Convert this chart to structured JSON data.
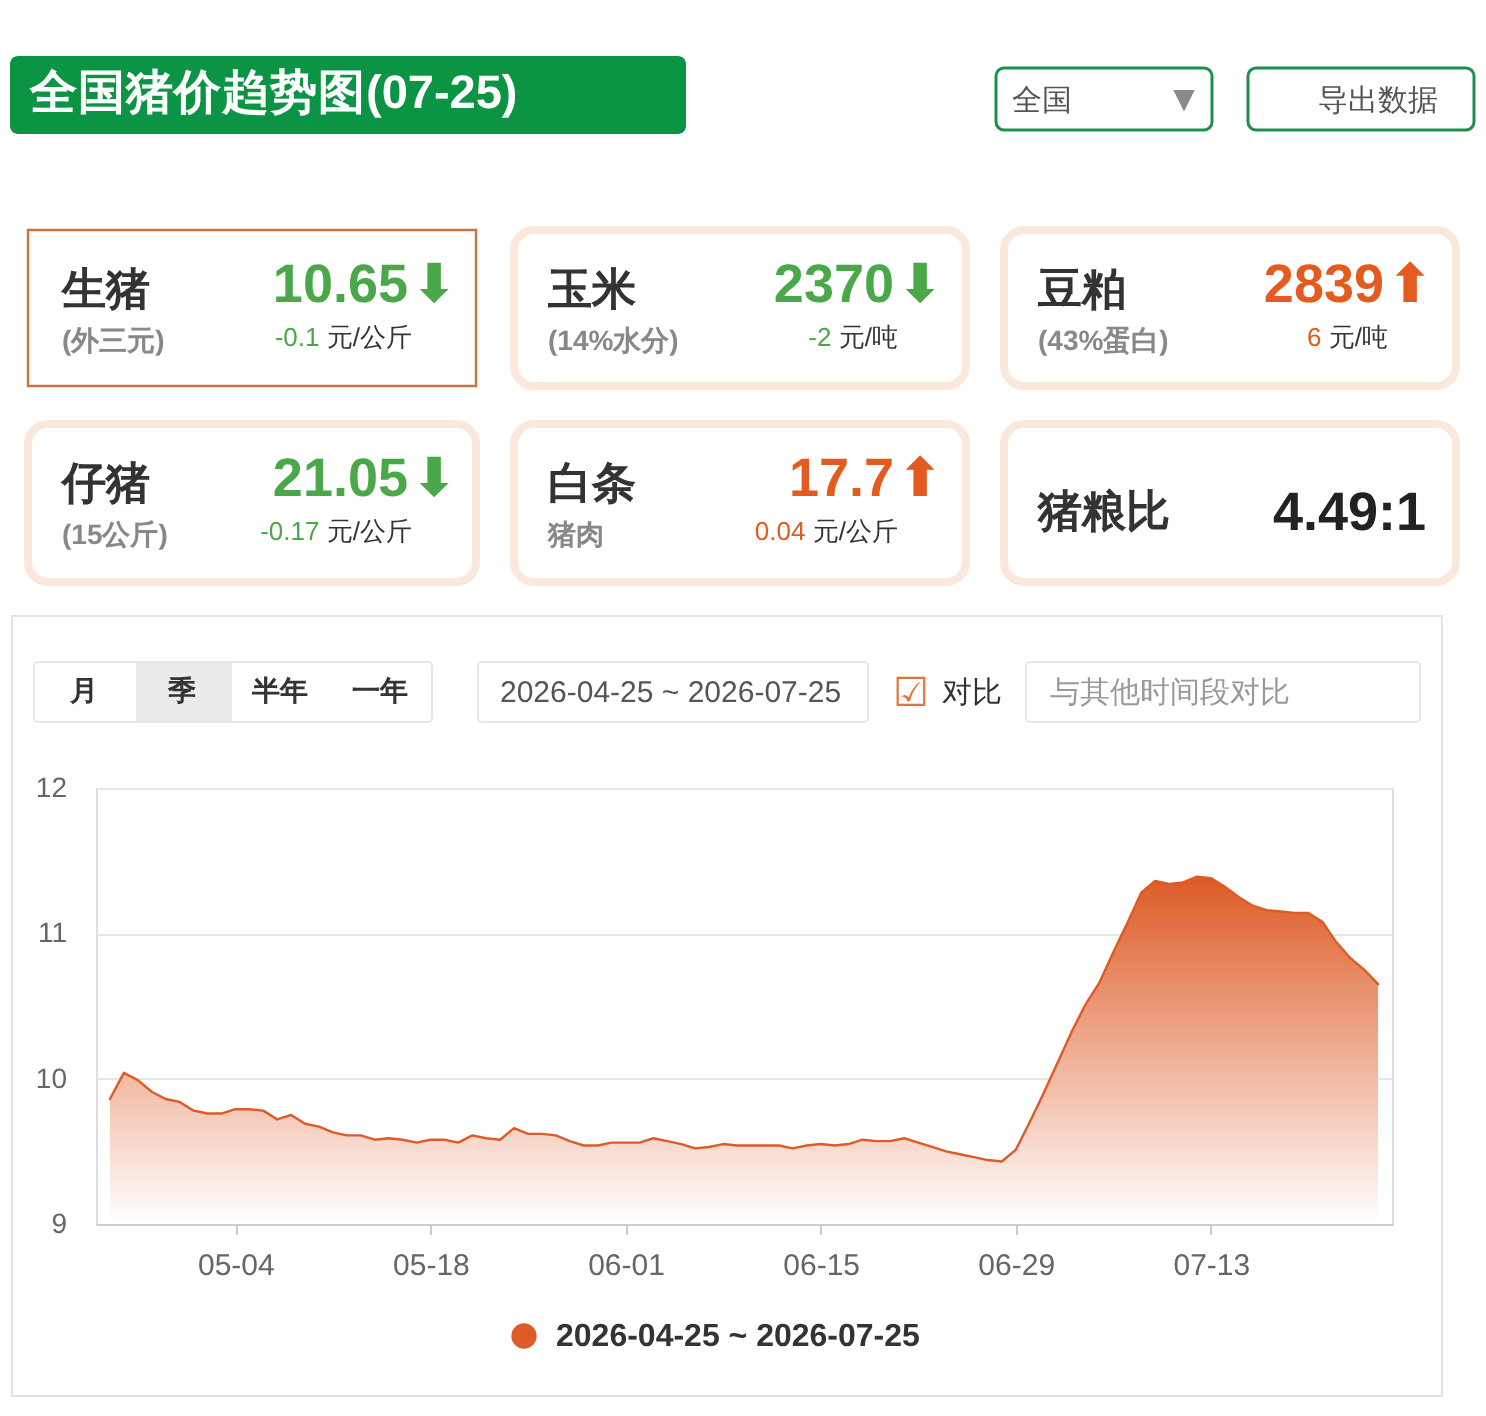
{
  "chart_data": {
    "type": "area",
    "title": "全国猪价趋势图(07-25)",
    "x": [
      "2026-04-25",
      "2026-04-26",
      "2026-04-27",
      "2026-04-28",
      "2026-04-29",
      "2026-04-30",
      "2026-05-01",
      "2026-05-02",
      "2026-05-03",
      "2026-05-04",
      "2026-05-05",
      "2026-05-06",
      "2026-05-07",
      "2026-05-08",
      "2026-05-09",
      "2026-05-10",
      "2026-05-11",
      "2026-05-12",
      "2026-05-13",
      "2026-05-14",
      "2026-05-15",
      "2026-05-16",
      "2026-05-17",
      "2026-05-18",
      "2026-05-19",
      "2026-05-20",
      "2026-05-21",
      "2026-05-22",
      "2026-05-23",
      "2026-05-24",
      "2026-05-25",
      "2026-05-26",
      "2026-05-27",
      "2026-05-28",
      "2026-05-29",
      "2026-05-30",
      "2026-05-31",
      "2026-06-01",
      "2026-06-02",
      "2026-06-03",
      "2026-06-04",
      "2026-06-05",
      "2026-06-06",
      "2026-06-07",
      "2026-06-08",
      "2026-06-09",
      "2026-06-10",
      "2026-06-11",
      "2026-06-12",
      "2026-06-13",
      "2026-06-14",
      "2026-06-15",
      "2026-06-16",
      "2026-06-17",
      "2026-06-18",
      "2026-06-19",
      "2026-06-20",
      "2026-06-21",
      "2026-06-22",
      "2026-06-23",
      "2026-06-24",
      "2026-06-25",
      "2026-06-26",
      "2026-06-27",
      "2026-06-28",
      "2026-06-29",
      "2026-06-30",
      "2026-07-01",
      "2026-07-02",
      "2026-07-03",
      "2026-07-04",
      "2026-07-05",
      "2026-07-06",
      "2026-07-07",
      "2026-07-08",
      "2026-07-09",
      "2026-07-10",
      "2026-07-11",
      "2026-07-12",
      "2026-07-13",
      "2026-07-14",
      "2026-07-15",
      "2026-07-16",
      "2026-07-17",
      "2026-07-18",
      "2026-07-19",
      "2026-07-20",
      "2026-07-21",
      "2026-07-22",
      "2026-07-23",
      "2026-07-24",
      "2026-07-25"
    ],
    "series": [
      {
        "name": "2026-04-25 ~ 2026-07-25",
        "color": "#dd5b26",
        "values": [
          9.86,
          10.04,
          9.99,
          9.91,
          9.86,
          9.84,
          9.78,
          9.76,
          9.76,
          9.79,
          9.79,
          9.78,
          9.72,
          9.75,
          9.69,
          9.67,
          9.63,
          9.61,
          9.61,
          9.58,
          9.59,
          9.58,
          9.56,
          9.58,
          9.58,
          9.56,
          9.61,
          9.59,
          9.58,
          9.66,
          9.62,
          9.62,
          9.61,
          9.57,
          9.54,
          9.54,
          9.56,
          9.56,
          9.56,
          9.59,
          9.57,
          9.55,
          9.52,
          9.53,
          9.55,
          9.54,
          9.54,
          9.54,
          9.54,
          9.52,
          9.54,
          9.55,
          9.54,
          9.55,
          9.58,
          9.57,
          9.57,
          9.59,
          9.56,
          9.53,
          9.5,
          9.48,
          9.46,
          9.44,
          9.43,
          9.51,
          9.7,
          9.9,
          10.11,
          10.32,
          10.51,
          10.66,
          10.87,
          11.07,
          11.28,
          11.36,
          11.34,
          11.35,
          11.39,
          11.38,
          11.32,
          11.25,
          11.19,
          11.16,
          11.15,
          11.14,
          11.14,
          11.08,
          10.94,
          10.83,
          10.75,
          10.65
        ]
      }
    ],
    "xlim": [
      "2026-04-24",
      "2026-07-26"
    ],
    "xticks": [
      {
        "value": "2026-05-04",
        "label": "05-04"
      },
      {
        "value": "2026-05-18",
        "label": "05-18"
      },
      {
        "value": "2026-06-01",
        "label": "06-01"
      },
      {
        "value": "2026-06-15",
        "label": "06-15"
      },
      {
        "value": "2026-06-29",
        "label": "06-29"
      },
      {
        "value": "2026-07-13",
        "label": "07-13"
      }
    ],
    "ylim": [
      9,
      12
    ],
    "yticks": [
      9,
      10,
      11,
      12
    ],
    "grid": "y",
    "legend": "bottom",
    "annotations": [
      "全国",
      "▼",
      "导出数据",
      "生猪",
      "(外三元)",
      "10.65",
      "⬇",
      "-0.1",
      "元/公斤",
      "玉米",
      "(14%水分)",
      "2370",
      "⬇",
      "-2",
      "元/吨",
      "豆粕",
      "(43%蛋白)",
      "2839",
      "⬆",
      "6",
      "元/吨",
      "仔猪",
      "(15公斤)",
      "21.05",
      "⬇",
      "-0.17",
      "元/公斤",
      "白条",
      "猪肉",
      "17.7",
      "⬆",
      "0.04",
      "元/公斤",
      "猪粮比",
      "4.49:1",
      "月",
      "季",
      "半年",
      "一年",
      "2026-04-25 ~ 2026-07-25",
      "☑",
      "对比",
      "与其他时间段对比"
    ]
  }
}
